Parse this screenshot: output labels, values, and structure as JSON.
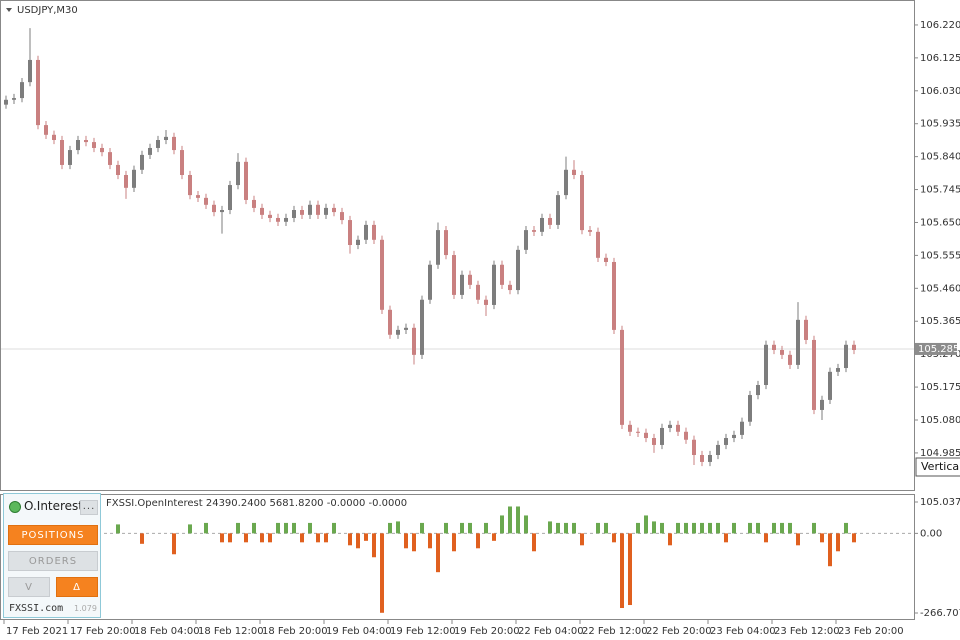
{
  "chart_data": [
    {
      "type": "candlestick",
      "title": "USDJPY,M30",
      "categories": [
        "17 Feb 2021",
        null,
        null,
        null,
        null,
        null,
        null,
        null,
        "17 Feb 20:00",
        null,
        null,
        null,
        null,
        null,
        null,
        null,
        "18 Feb 04:00",
        null,
        null,
        null,
        null,
        null,
        null,
        null,
        "18 Feb 12:00",
        null,
        null,
        null,
        null,
        null,
        null,
        null,
        "18 Feb 20:00",
        null,
        null,
        null,
        null,
        null,
        null,
        null,
        "19 Feb 04:00",
        null,
        null,
        null,
        null,
        null,
        null,
        null,
        "19 Feb 12:00",
        null,
        null,
        null,
        null,
        null,
        null,
        null,
        "19 Feb 20:00",
        null,
        null,
        null,
        null,
        null,
        null,
        null,
        "22 Feb 04:00",
        null,
        null,
        null,
        null,
        null,
        null,
        null,
        "22 Feb 12:00",
        null,
        null,
        null,
        null,
        null,
        null,
        null,
        "22 Feb 20:00",
        null,
        null,
        null,
        null,
        null,
        null,
        null,
        "23 Feb 04:00",
        null,
        null,
        null,
        null,
        null,
        null,
        null,
        "23 Feb 12:00",
        null,
        null,
        null,
        null,
        null,
        null,
        null,
        "23 Feb 20:00",
        null,
        null
      ],
      "open": [
        105.99,
        106.004,
        106.009,
        106.055,
        106.119,
        105.931,
        105.903,
        105.888,
        105.816,
        105.859,
        105.888,
        105.882,
        105.865,
        105.853,
        105.816,
        105.787,
        105.75,
        105.802,
        105.845,
        105.865,
        105.888,
        105.897,
        105.859,
        105.787,
        105.729,
        105.721,
        105.701,
        105.68,
        105.686,
        105.758,
        105.825,
        105.715,
        105.692,
        105.672,
        105.663,
        105.652,
        105.663,
        105.686,
        105.672,
        105.701,
        105.672,
        105.692,
        105.68,
        105.657,
        105.585,
        105.6,
        105.643,
        105.6,
        105.398,
        105.326,
        105.34,
        105.346,
        105.268,
        105.427,
        105.528,
        105.628,
        105.556,
        105.441,
        105.499,
        105.47,
        105.427,
        105.412,
        105.528,
        105.47,
        105.455,
        105.571,
        105.628,
        105.623,
        105.663,
        105.643,
        105.729,
        105.802,
        105.787,
        105.628,
        105.623,
        105.548,
        105.536,
        105.34,
        105.066,
        105.046,
        105.043,
        105.028,
        105.008,
        105.057,
        105.066,
        105.046,
        105.023,
        104.979,
        104.959,
        104.979,
        105.008,
        105.028,
        105.037,
        105.075,
        105.152,
        105.181,
        105.297,
        105.282,
        105.268,
        105.239,
        105.369,
        105.311,
        105.109,
        105.138,
        105.219,
        105.23,
        105.297
      ],
      "high": [
        106.016,
        106.021,
        106.067,
        106.211,
        106.131,
        105.943,
        105.915,
        105.9,
        105.871,
        105.9,
        105.9,
        105.894,
        105.877,
        105.865,
        105.828,
        105.799,
        105.814,
        105.857,
        105.877,
        105.9,
        105.917,
        105.909,
        105.871,
        105.799,
        105.741,
        105.733,
        105.713,
        105.698,
        105.77,
        105.85,
        105.837,
        105.727,
        105.704,
        105.684,
        105.675,
        105.675,
        105.698,
        105.698,
        105.713,
        105.713,
        105.704,
        105.704,
        105.692,
        105.669,
        105.612,
        105.655,
        105.655,
        105.612,
        105.41,
        105.352,
        105.358,
        105.358,
        105.439,
        105.54,
        105.65,
        105.64,
        105.568,
        105.511,
        105.511,
        105.482,
        105.439,
        105.54,
        105.54,
        105.482,
        105.583,
        105.64,
        105.64,
        105.675,
        105.675,
        105.741,
        105.84,
        105.83,
        105.799,
        105.64,
        105.635,
        105.56,
        105.548,
        105.352,
        105.078,
        105.058,
        105.055,
        105.04,
        105.069,
        105.078,
        105.078,
        105.058,
        105.035,
        104.991,
        104.991,
        105.02,
        105.04,
        105.049,
        105.087,
        105.164,
        105.193,
        105.309,
        105.309,
        105.294,
        105.28,
        105.42,
        105.381,
        105.323,
        105.15,
        105.231,
        105.242,
        105.309,
        105.309
      ],
      "low": [
        105.978,
        105.992,
        105.997,
        106.043,
        105.919,
        105.891,
        105.876,
        105.804,
        105.804,
        105.847,
        105.87,
        105.853,
        105.841,
        105.804,
        105.775,
        105.718,
        105.738,
        105.79,
        105.833,
        105.853,
        105.876,
        105.847,
        105.775,
        105.717,
        105.709,
        105.689,
        105.668,
        105.618,
        105.674,
        105.746,
        105.703,
        105.68,
        105.66,
        105.651,
        105.64,
        105.64,
        105.651,
        105.66,
        105.66,
        105.66,
        105.66,
        105.668,
        105.645,
        105.56,
        105.573,
        105.588,
        105.588,
        105.386,
        105.314,
        105.314,
        105.328,
        105.24,
        105.256,
        105.415,
        105.516,
        105.544,
        105.429,
        105.429,
        105.458,
        105.415,
        105.38,
        105.4,
        105.458,
        105.443,
        105.443,
        105.559,
        105.611,
        105.611,
        105.631,
        105.631,
        105.717,
        105.775,
        105.616,
        105.611,
        105.536,
        105.524,
        105.328,
        105.054,
        105.034,
        105.031,
        105.016,
        104.985,
        104.996,
        105.045,
        105.034,
        105.011,
        104.95,
        104.947,
        104.947,
        104.967,
        104.996,
        105.016,
        105.025,
        105.063,
        105.14,
        105.169,
        105.27,
        105.256,
        105.227,
        105.227,
        105.299,
        105.097,
        105.08,
        105.126,
        105.207,
        105.218,
        105.27
      ],
      "close": [
        106.004,
        106.009,
        106.055,
        106.119,
        105.931,
        105.903,
        105.888,
        105.816,
        105.859,
        105.888,
        105.882,
        105.865,
        105.853,
        105.816,
        105.787,
        105.75,
        105.802,
        105.845,
        105.865,
        105.888,
        105.897,
        105.859,
        105.787,
        105.729,
        105.721,
        105.701,
        105.68,
        105.686,
        105.758,
        105.825,
        105.715,
        105.692,
        105.672,
        105.663,
        105.652,
        105.663,
        105.686,
        105.672,
        105.701,
        105.672,
        105.692,
        105.68,
        105.657,
        105.585,
        105.6,
        105.643,
        105.6,
        105.398,
        105.326,
        105.34,
        105.346,
        105.268,
        105.427,
        105.528,
        105.628,
        105.556,
        105.441,
        105.499,
        105.47,
        105.427,
        105.412,
        105.528,
        105.47,
        105.455,
        105.571,
        105.628,
        105.623,
        105.663,
        105.643,
        105.729,
        105.802,
        105.787,
        105.628,
        105.623,
        105.548,
        105.536,
        105.34,
        105.066,
        105.046,
        105.043,
        105.028,
        105.008,
        105.057,
        105.066,
        105.046,
        105.023,
        104.979,
        104.959,
        104.979,
        105.008,
        105.028,
        105.037,
        105.075,
        105.152,
        105.181,
        105.297,
        105.282,
        105.268,
        105.239,
        105.369,
        105.311,
        105.109,
        105.138,
        105.219,
        105.23,
        105.297,
        105.282
      ],
      "up_color": "#7d7d7d",
      "down_color": "#c98080",
      "ylim": [
        104.878,
        106.292
      ],
      "yticks": [
        {
          "value": 106.22,
          "label": "106.220"
        },
        106.125,
        {
          "value": 106.03,
          "label": "106.030"
        },
        105.935,
        {
          "value": 105.84,
          "label": "105.840"
        },
        105.745,
        {
          "value": 105.65,
          "label": "105.650"
        },
        105.555,
        {
          "value": 105.46,
          "label": "105.460"
        },
        105.365,
        {
          "value": 105.27,
          "label": "105.270"
        },
        105.175,
        {
          "value": 105.08,
          "label": "105.080"
        },
        104.985
      ],
      "current_price": 105.285,
      "tooltip": "Vertical"
    },
    {
      "type": "bar",
      "title": "FXSSI.OpenInterest 24390.2400 5681.8200 -0.0000 -0.0000",
      "values": [
        30,
        30,
        0,
        35,
        35,
        0,
        0,
        0,
        -35,
        0,
        35,
        0,
        0,
        0,
        30,
        0,
        0,
        -35,
        0,
        0,
        0,
        -70,
        0,
        30,
        0,
        35,
        0,
        -30,
        -30,
        35,
        -30,
        35,
        -30,
        -30,
        35,
        35,
        35,
        -30,
        35,
        -30,
        -30,
        35,
        0,
        -40,
        -50,
        -25,
        -80,
        -266,
        35,
        40,
        -50,
        -60,
        35,
        -50,
        -130,
        35,
        -60,
        35,
        35,
        -50,
        35,
        -25,
        60,
        90,
        90,
        60,
        -60,
        0,
        40,
        35,
        35,
        35,
        -40,
        0,
        35,
        35,
        -30,
        -250,
        -240,
        35,
        60,
        40,
        35,
        -40,
        35,
        35,
        35,
        35,
        35,
        35,
        -30,
        35,
        0,
        35,
        35,
        -30,
        35,
        35,
        35,
        -40,
        0,
        35,
        -30,
        -110,
        -60,
        35,
        -30
      ],
      "positive_color": "#6aa84f",
      "negative_color": "#e0601f",
      "ylim": [
        -290.15,
        128.48
      ],
      "yticks": [
        105.0375,
        {
          "value": 0,
          "label": "0.00"
        },
        -266.7075
      ]
    }
  ],
  "panel": {
    "title": "O.Interest",
    "menu": "...",
    "positions": "POSITIONS",
    "orders": "ORDERS",
    "v": "V",
    "delta": "Δ",
    "brand": "FXSSI.com",
    "version": "1.079"
  }
}
